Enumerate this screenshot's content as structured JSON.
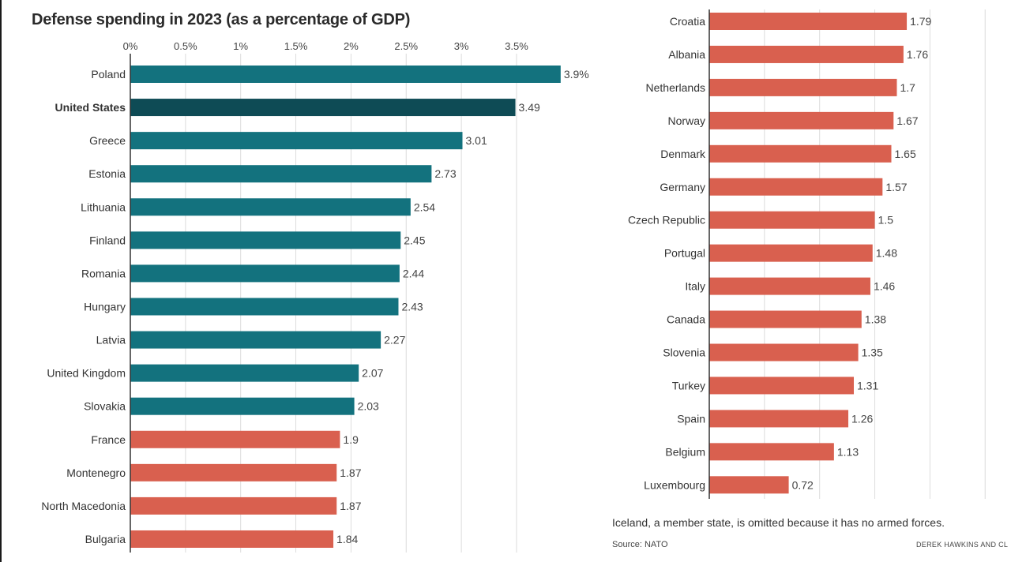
{
  "title": "Defense spending in 2023 (as a percentage of GDP)",
  "note": "Iceland, a member state, is omitted because it has no armed forces.",
  "source": "Source: NATO",
  "credit": "DEREK HAWKINS AND CL",
  "colors": {
    "teal": "#13727e",
    "highlight": "#0e4b55",
    "coral": "#d9604f",
    "grid": "#dcdcdc",
    "axis": "#333333"
  },
  "chart_data": [
    {
      "type": "bar",
      "orientation": "horizontal",
      "title": "Defense spending in 2023 (as a percentage of GDP)",
      "xlim": [
        0,
        3.9
      ],
      "ticks": [
        0,
        0.5,
        1,
        1.5,
        2,
        2.5,
        3,
        3.5
      ],
      "tick_labels": [
        "0%",
        "0.5%",
        "1%",
        "1.5%",
        "2%",
        "2.5%",
        "3%",
        "3.5%"
      ],
      "categories": [
        "Poland",
        "United States",
        "Greece",
        "Estonia",
        "Lithuania",
        "Finland",
        "Romania",
        "Hungary",
        "Latvia",
        "United Kingdom",
        "Slovakia",
        "France",
        "Montenegro",
        "North Macedonia",
        "Bulgaria"
      ],
      "values": [
        3.9,
        3.49,
        3.01,
        2.73,
        2.54,
        2.45,
        2.44,
        2.43,
        2.27,
        2.07,
        2.03,
        1.9,
        1.87,
        1.87,
        1.84
      ],
      "value_labels": [
        "3.9%",
        "3.49",
        "3.01",
        "2.73",
        "2.54",
        "2.45",
        "2.44",
        "2.43",
        "2.27",
        "2.07",
        "2.03",
        "1.9",
        "1.87",
        "1.87",
        "1.84"
      ],
      "groups": [
        "teal",
        "highlight",
        "teal",
        "teal",
        "teal",
        "teal",
        "teal",
        "teal",
        "teal",
        "teal",
        "teal",
        "coral",
        "coral",
        "coral",
        "coral"
      ],
      "bold": [
        "United States"
      ]
    },
    {
      "type": "bar",
      "orientation": "horizontal",
      "xlim": [
        0,
        3.9
      ],
      "ticks": [
        0,
        0.5,
        1,
        1.5,
        2,
        2.5
      ],
      "categories": [
        "Croatia",
        "Albania",
        "Netherlands",
        "Norway",
        "Denmark",
        "Germany",
        "Czech Republic",
        "Portugal",
        "Italy",
        "Canada",
        "Slovenia",
        "Turkey",
        "Spain",
        "Belgium",
        "Luxembourg"
      ],
      "values": [
        1.79,
        1.76,
        1.7,
        1.67,
        1.65,
        1.57,
        1.5,
        1.48,
        1.46,
        1.38,
        1.35,
        1.31,
        1.26,
        1.13,
        0.72
      ],
      "value_labels": [
        "1.79",
        "1.76",
        "1.7",
        "1.67",
        "1.65",
        "1.57",
        "1.5",
        "1.48",
        "1.46",
        "1.38",
        "1.35",
        "1.31",
        "1.26",
        "1.13",
        "0.72"
      ],
      "groups": [
        "coral",
        "coral",
        "coral",
        "coral",
        "coral",
        "coral",
        "coral",
        "coral",
        "coral",
        "coral",
        "coral",
        "coral",
        "coral",
        "coral",
        "coral"
      ],
      "bold": []
    }
  ]
}
